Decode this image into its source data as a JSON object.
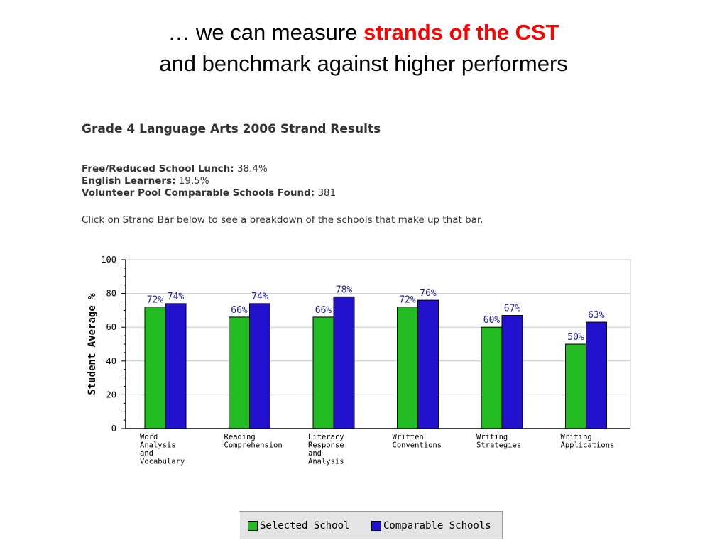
{
  "slide": {
    "title_prefix": "… we can measure ",
    "title_highlight": "strands of the CST",
    "title_line2": "and benchmark against higher performers"
  },
  "report": {
    "title": "Grade 4 Language Arts 2006 Strand Results",
    "stats": [
      {
        "label": "Free/Reduced School Lunch:",
        "value": "38.4%"
      },
      {
        "label": "English Learners:",
        "value": "19.5%"
      },
      {
        "label": "Volunteer Pool Comparable Schools Found:",
        "value": "381"
      }
    ],
    "instructions": "Click on Strand Bar below to see a breakdown of the schools that make up that bar."
  },
  "colors": {
    "selected": "#22bb22",
    "comparable": "#2211cc",
    "title_accent": "#ff0000",
    "grid": "#c8c8c8"
  },
  "chart_data": {
    "type": "bar",
    "title": "",
    "xlabel": "",
    "ylabel": "Student Average %",
    "ylim": [
      0,
      100
    ],
    "yticks": [
      0,
      20,
      40,
      60,
      80,
      100
    ],
    "grid": true,
    "legend": "bottom",
    "categories": [
      [
        "Word",
        "Analysis",
        "and",
        "Vocabulary"
      ],
      [
        "Reading",
        "Comprehension"
      ],
      [
        "Literacy",
        "Response",
        "and",
        "Analysis"
      ],
      [
        "Written",
        "Conventions"
      ],
      [
        "Writing",
        "Strategies"
      ],
      [
        "Writing",
        "Applications"
      ]
    ],
    "series": [
      {
        "name": "Selected School",
        "values": [
          72,
          66,
          66,
          72,
          60,
          50
        ],
        "labels": [
          "72%",
          "66%",
          "66%",
          "72%",
          "60%",
          "50%"
        ]
      },
      {
        "name": "Comparable Schools",
        "values": [
          74,
          74,
          78,
          76,
          67,
          63
        ],
        "labels": [
          "74%",
          "74%",
          "78%",
          "76%",
          "67%",
          "63%"
        ]
      }
    ]
  }
}
